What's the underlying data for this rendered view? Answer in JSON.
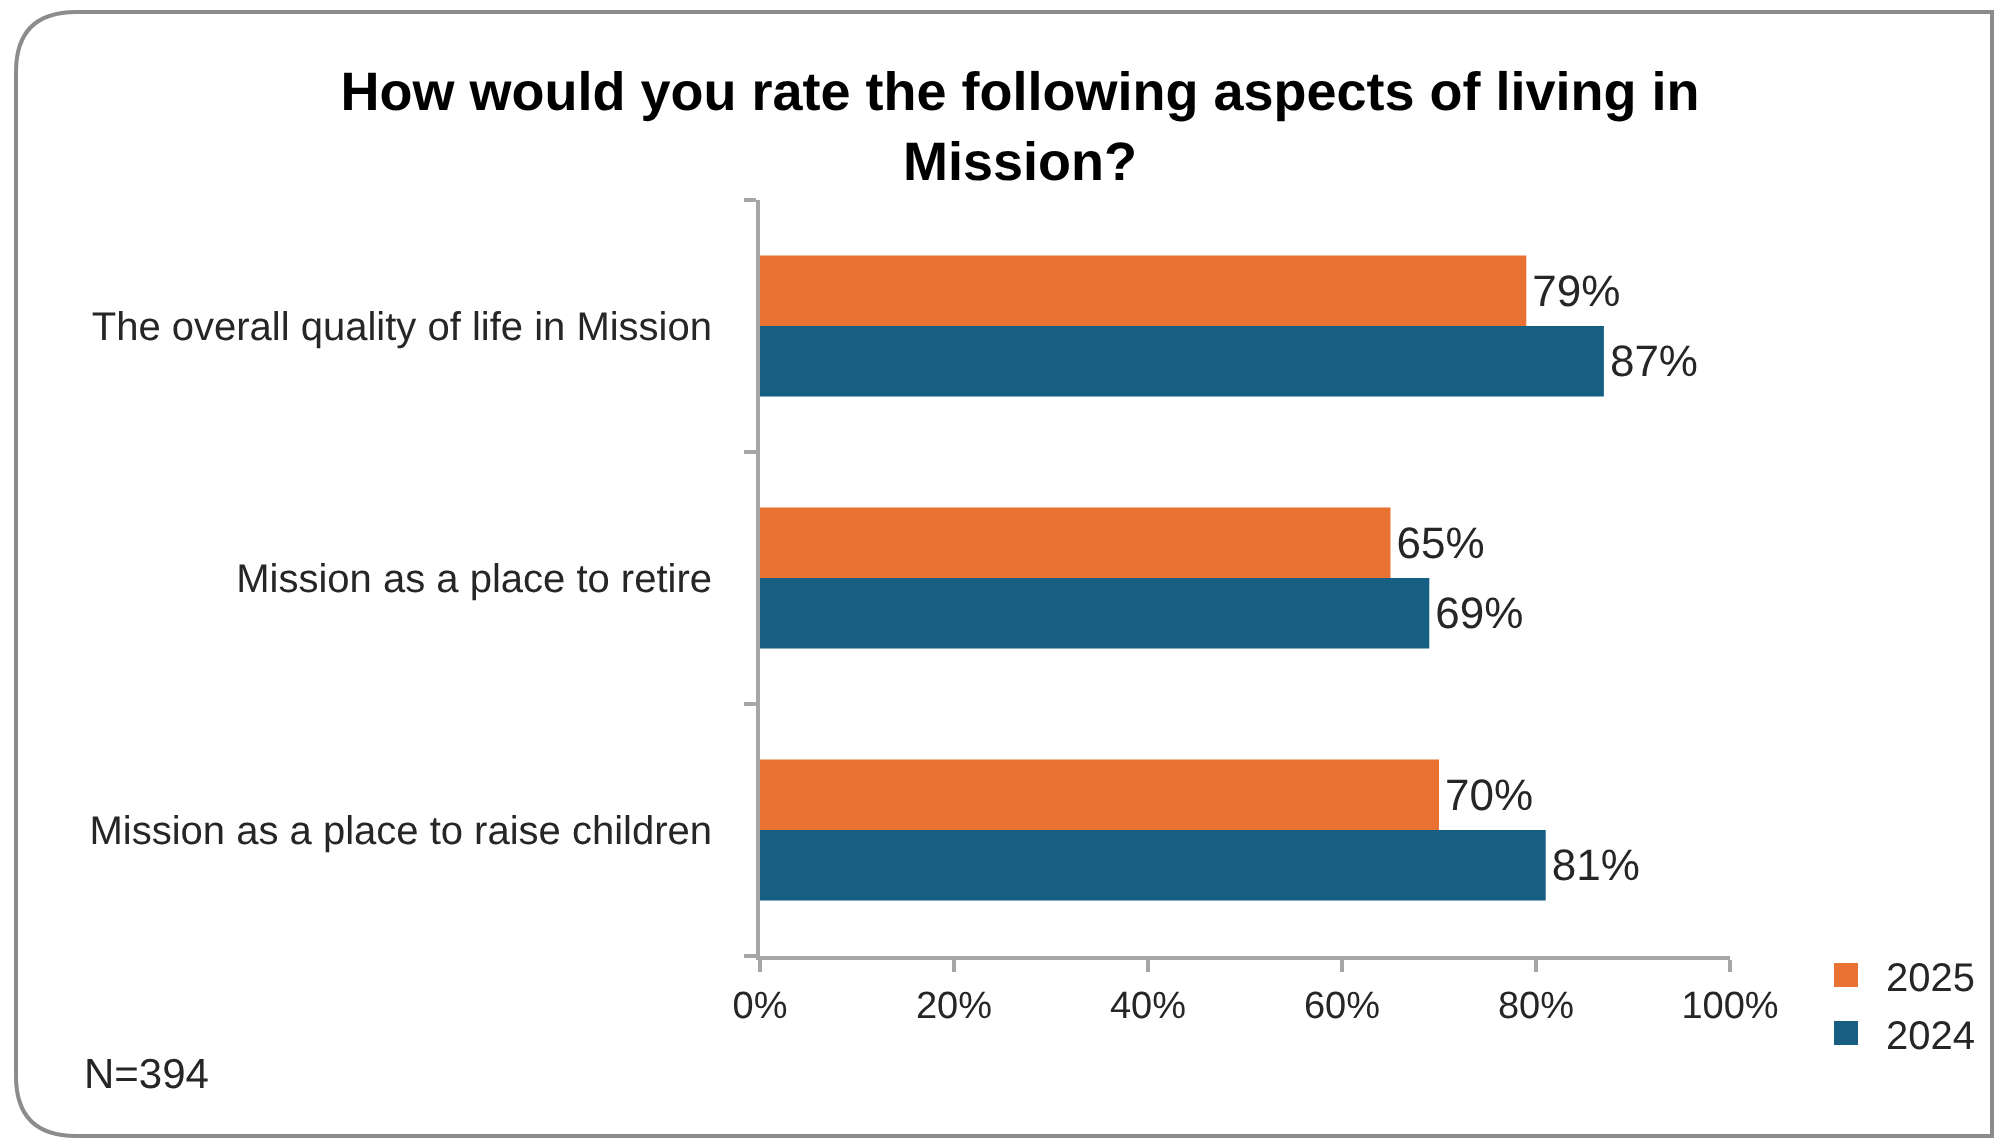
{
  "chart_data": {
    "type": "bar",
    "orientation": "horizontal",
    "title": "How would you rate the following aspects of living in Mission?",
    "categories": [
      "The overall quality of life in Mission",
      "Mission as a place to retire",
      "Mission as a place to raise children"
    ],
    "series": [
      {
        "name": "2025",
        "color": "#e97132",
        "values": [
          79,
          65,
          70
        ],
        "value_labels": [
          "79%",
          "65%",
          "70%"
        ]
      },
      {
        "name": "2024",
        "color": "#175f82",
        "values": [
          87,
          69,
          81
        ],
        "value_labels": [
          "87%",
          "69%",
          "81%"
        ]
      }
    ],
    "xlim": [
      0,
      100
    ],
    "xticks": [
      {
        "value": 0,
        "label": "0%"
      },
      {
        "value": 20,
        "label": "20%"
      },
      {
        "value": 40,
        "label": "40%"
      },
      {
        "value": 60,
        "label": "60%"
      },
      {
        "value": 80,
        "label": "80%"
      },
      {
        "value": 100,
        "label": "100%"
      }
    ],
    "legend": "bottom right",
    "grid": false,
    "annotations": [
      "N=394"
    ]
  }
}
